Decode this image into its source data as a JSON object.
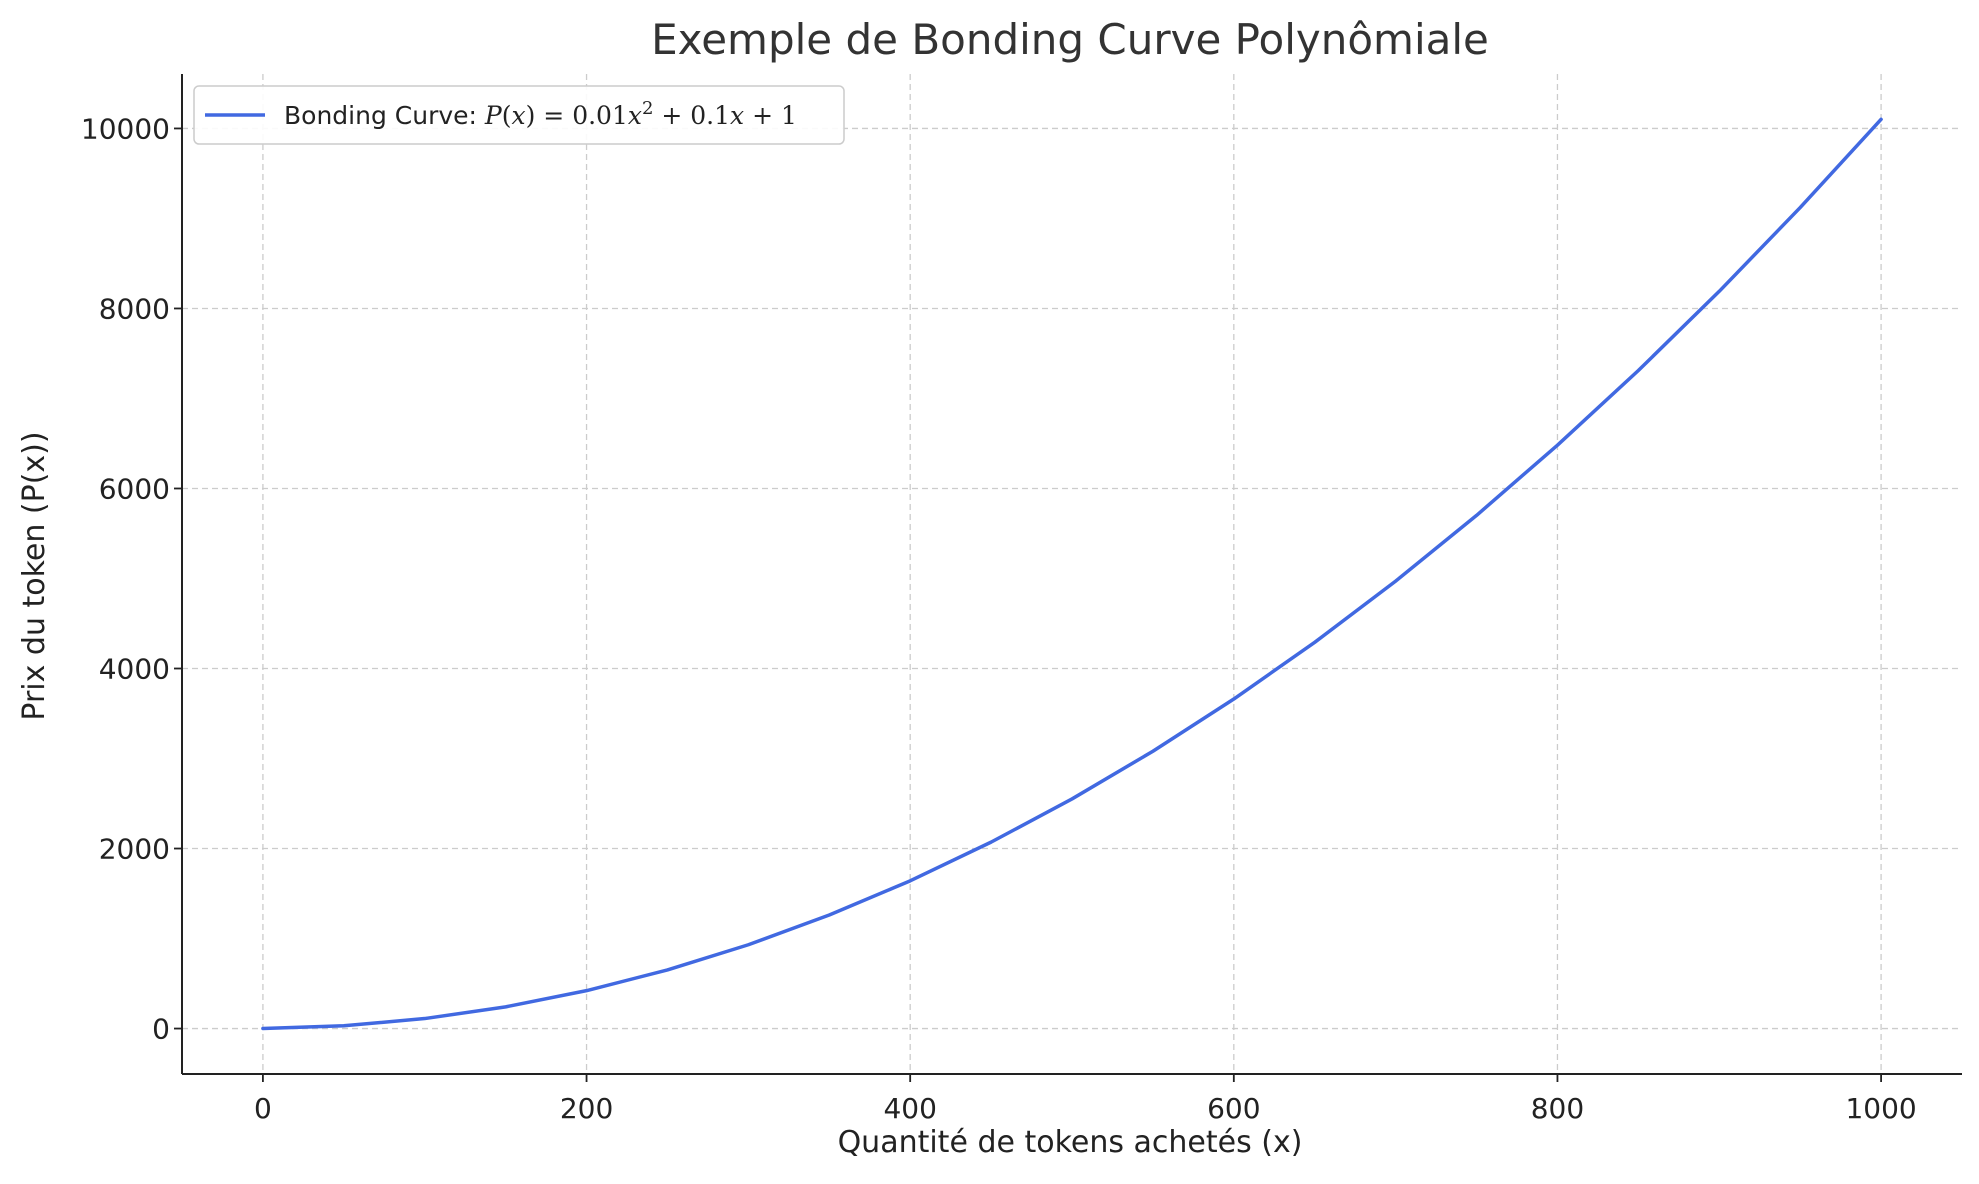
{
  "chart_data": {
    "type": "line",
    "title": "Exemple de Bonding Curve Polynômiale",
    "xlabel": "Quantité de tokens achetés (x)",
    "ylabel": "Prix du token (P(x))",
    "xlim": [
      -50,
      1050
    ],
    "ylim": [
      -505,
      10605
    ],
    "xticks": [
      0,
      200,
      400,
      600,
      800,
      1000
    ],
    "yticks": [
      0,
      2000,
      4000,
      6000,
      8000,
      10000
    ],
    "xtick_labels": [
      "0",
      "200",
      "400",
      "600",
      "800",
      "1000"
    ],
    "ytick_labels": [
      "0",
      "2000",
      "4000",
      "6000",
      "8000",
      "10000"
    ],
    "grid": true,
    "legend_position": "top-left",
    "series": [
      {
        "name": "Bonding Curve: P(x) = 0.01x² + 0.1x + 1",
        "color": "#4169e1",
        "x": [
          0,
          50,
          100,
          150,
          200,
          250,
          300,
          350,
          400,
          450,
          500,
          550,
          600,
          650,
          700,
          750,
          800,
          850,
          900,
          950,
          1000
        ],
        "y": [
          1,
          31,
          111,
          241,
          421,
          651,
          931,
          1261,
          1641,
          2071,
          2551,
          3081,
          3661,
          4291,
          4971,
          5701,
          6481,
          7311,
          8191,
          9121,
          10101
        ]
      }
    ],
    "legend": {
      "label_prefix": "Bonding Curve: ",
      "formula": "P(x) = 0.01x² + 0.1x + 1"
    }
  }
}
